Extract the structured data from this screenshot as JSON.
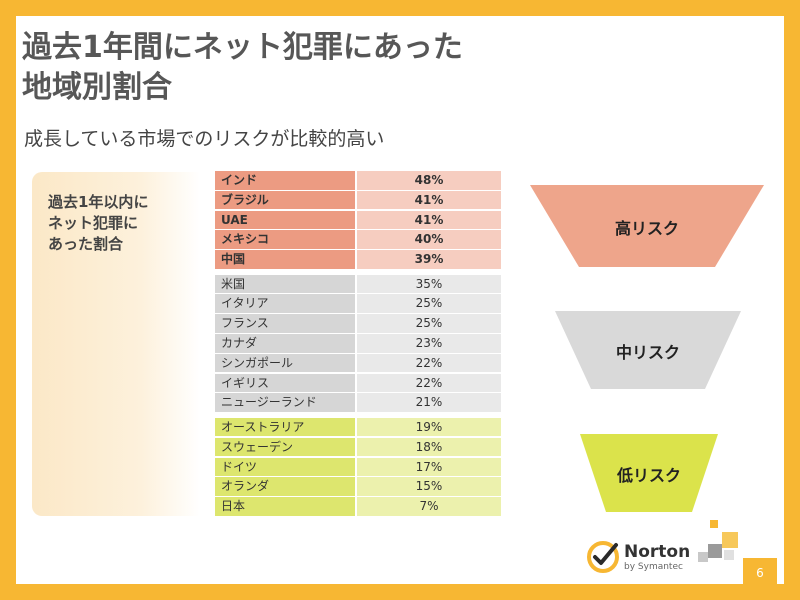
{
  "slide": {
    "title": "過去1年間にネット犯罪にあった\n地域別割合",
    "subtitle": "成長している市場でのリスクが比較的高い",
    "side_label": "過去1年以内に\nネット犯罪に\nあった割合",
    "page_number": "6"
  },
  "risk_labels": {
    "high": "高リスク",
    "mid": "中リスク",
    "low": "低リスク"
  },
  "colors": {
    "frame": "#f7b733",
    "high": "#ec9b82",
    "mid": "#d6d6d6",
    "low": "#dde66e"
  },
  "groups": {
    "high": [
      {
        "country": "インド",
        "value": "48%"
      },
      {
        "country": "ブラジル",
        "value": "41%"
      },
      {
        "country": "UAE",
        "value": "41%"
      },
      {
        "country": "メキシコ",
        "value": "40%"
      },
      {
        "country": "中国",
        "value": "39%"
      }
    ],
    "mid": [
      {
        "country": "米国",
        "value": "35%"
      },
      {
        "country": "イタリア",
        "value": "25%"
      },
      {
        "country": "フランス",
        "value": "25%"
      },
      {
        "country": "カナダ",
        "value": "23%"
      },
      {
        "country": "シンガポール",
        "value": "22%"
      },
      {
        "country": "イギリス",
        "value": "22%"
      },
      {
        "country": "ニュージーランド",
        "value": "21%"
      }
    ],
    "low": [
      {
        "country": "オーストラリア",
        "value": "19%"
      },
      {
        "country": "スウェーデン",
        "value": "18%"
      },
      {
        "country": "ドイツ",
        "value": "17%"
      },
      {
        "country": "オランダ",
        "value": "15%"
      },
      {
        "country": "日本",
        "value": "7%"
      }
    ]
  },
  "logo": {
    "name": "Norton",
    "byline": "by Symantec",
    "icon": "norton-check-icon"
  }
}
